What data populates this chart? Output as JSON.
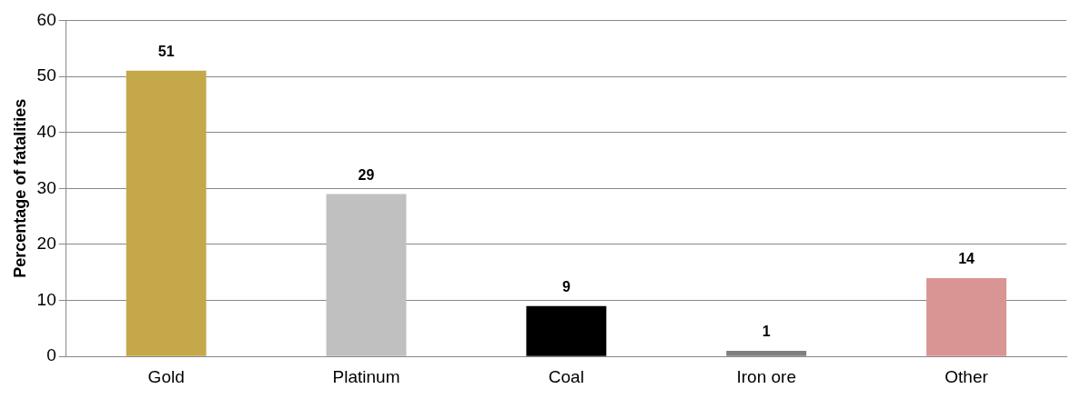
{
  "chart_data": {
    "type": "bar",
    "ylabel": "Percentage of fatalities",
    "categories": [
      "Gold",
      "Platinum",
      "Coal",
      "Iron ore",
      "Other"
    ],
    "values": [
      51,
      29,
      9,
      1,
      14
    ],
    "colors": [
      "#c4a84a",
      "#c0c0c0",
      "#000000",
      "#808080",
      "#d99594"
    ],
    "ylim": [
      0,
      60
    ],
    "yticks": [
      0,
      10,
      20,
      30,
      40,
      50,
      60
    ],
    "grid": "y",
    "legend": false,
    "data_labels": true
  }
}
